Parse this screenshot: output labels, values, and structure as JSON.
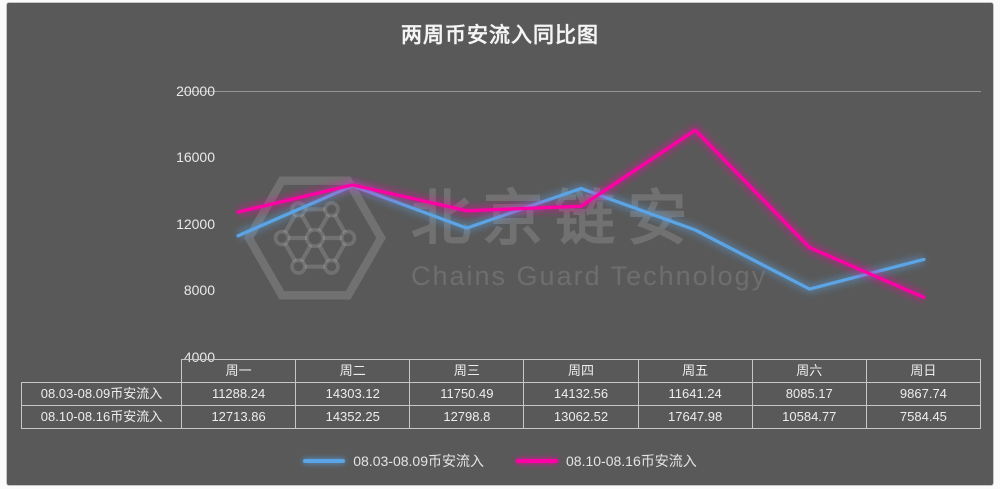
{
  "frame": {
    "background": "#595959",
    "border_color": "#c6c6c6"
  },
  "title": "两周币安流入同比图",
  "watermark": {
    "brand": "北京链安",
    "subtitle": "Chains Guard Technology",
    "logo_icon": "hexagon-network-icon"
  },
  "chart_data": {
    "type": "line",
    "title": "两周币安流入同比图",
    "categories": [
      "周一",
      "周二",
      "周三",
      "周四",
      "周五",
      "周六",
      "周日"
    ],
    "series": [
      {
        "name": "08.03-08.09币安流入",
        "color": "#5BA4E5",
        "values": [
          11288.24,
          14303.12,
          11750.49,
          14132.56,
          11641.24,
          8085.17,
          9867.74
        ]
      },
      {
        "name": "08.10-08.16币安流入",
        "color": "#FF00A6",
        "values": [
          12713.86,
          14352.25,
          12798.8,
          13062.52,
          17647.98,
          10584.77,
          7584.45
        ]
      }
    ],
    "ylim": [
      4000,
      20000
    ],
    "yticks": [
      20000,
      16000,
      12000,
      8000,
      4000
    ],
    "grid": false,
    "legend_position": "bottom",
    "data_table_shown": true
  }
}
